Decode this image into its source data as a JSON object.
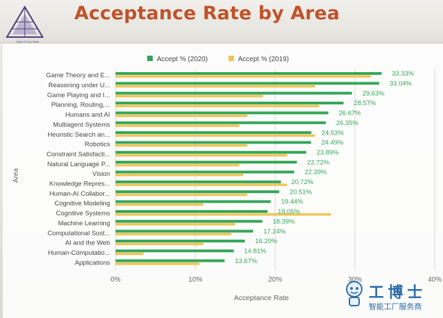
{
  "slide": {
    "title": "Acceptance Rate by Area",
    "logo_caption": "AAAI-21 Key Stats"
  },
  "colors": {
    "title": "#c0532a",
    "series_2020": "#22a04a",
    "series_2019": "#f0c24a",
    "label_2020": "#22a04a",
    "axis_text": "#555555",
    "grid": "#d8d8d8"
  },
  "chart_data": {
    "type": "bar",
    "orientation": "horizontal",
    "title": "",
    "xlabel": "Acceptance Rate",
    "ylabel": "Area",
    "xlim": [
      0,
      0.4
    ],
    "x_ticks": [
      "0%",
      "10%",
      "20%",
      "30%",
      "40%"
    ],
    "grid": true,
    "legend_position": "top",
    "categories": [
      "Game Theory and E...",
      "Reasoning under U...",
      "Game Playing and I...",
      "Planning, Routing,...",
      "Humans and AI",
      "Multiagent Systems",
      "Heuristic Search an...",
      "Robotics",
      "Constraint Satisfacti...",
      "Natural Language P...",
      "Vision",
      "Knowledge Repres...",
      "Human-AI Collabor...",
      "Cognitive Modeling",
      "Cognitive Systems",
      "Machine Learning",
      "Computational Sust...",
      "AI and the Web",
      "Human-Computatio...",
      "Applications"
    ],
    "series": [
      {
        "name": "Accept % (2020)",
        "values": [
          0.3333,
          0.3304,
          0.2963,
          0.2857,
          0.2667,
          0.2635,
          0.2453,
          0.2449,
          0.2389,
          0.2272,
          0.2239,
          0.2072,
          0.2051,
          0.1944,
          0.1905,
          0.1839,
          0.1724,
          0.162,
          0.1481,
          0.1367
        ],
        "labels": [
          "33.33%",
          "33.04%",
          "29.63%",
          "28.57%",
          "26.67%",
          "26.35%",
          "24.53%",
          "24.49%",
          "23.89%",
          "22.72%",
          "22.39%",
          "20.72%",
          "20.51%",
          "19.44%",
          "19.05%",
          "18.39%",
          "17.24%",
          "16.20%",
          "14.81%",
          "13.67%"
        ]
      },
      {
        "name": "Accept % (2019)",
        "values": [
          0.32,
          0.25,
          0.185,
          0.255,
          0.165,
          0.155,
          0.25,
          0.165,
          0.215,
          0.155,
          0.16,
          0.215,
          0.165,
          0.11,
          0.27,
          0.15,
          0.145,
          0.11,
          0.035,
          0.105
        ]
      }
    ]
  },
  "watermark": {
    "main": "工博士",
    "sub": "智能工厂服务商"
  }
}
